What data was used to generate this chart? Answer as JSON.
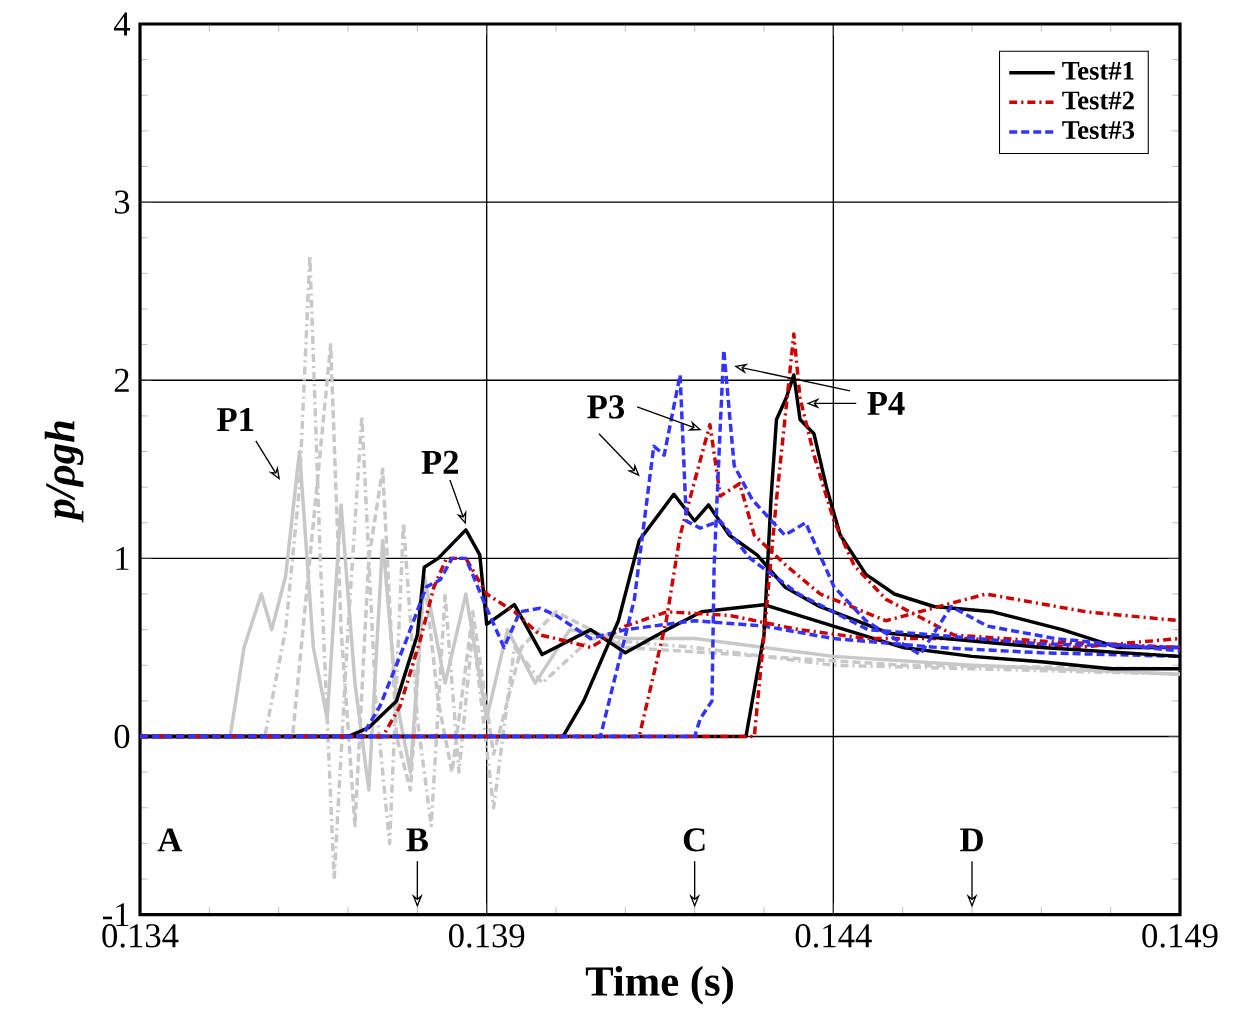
{
  "chart_data": {
    "type": "line",
    "xlabel": "Time (s)",
    "ylabel": "p/ρgh",
    "xlim": [
      0.134,
      0.149
    ],
    "ylim": [
      -1,
      4
    ],
    "xticks": [
      0.134,
      0.139,
      0.144,
      0.149
    ],
    "yticks": [
      -1,
      0,
      1,
      2,
      3,
      4
    ],
    "grid": true,
    "legend": "top right",
    "series": [
      {
        "name": "Test#1",
        "color": "#000000",
        "line_style": "solid",
        "x": [
          0.134,
          0.137,
          0.1373,
          0.1377,
          0.138,
          0.1381,
          0.1383,
          0.1387,
          0.1389,
          0.139,
          0.1394,
          0.1396,
          0.1398,
          0.1405,
          0.141,
          0.1416,
          0.1421,
          0.143,
          0.144,
          0.145,
          0.146,
          0.147,
          0.148,
          0.149
        ],
        "values": [
          0,
          0,
          0.05,
          0.2,
          0.57,
          0.95,
          1.0,
          1.16,
          1.02,
          0.63,
          0.74,
          0.6,
          0.46,
          0.6,
          0.47,
          0.6,
          0.7,
          0.74,
          0.62,
          0.5,
          0.45,
          0.42,
          0.38,
          0.38
        ]
      },
      {
        "name": "Test#2",
        "color": "#cc0000",
        "line_style": "dashdot",
        "x": [
          0.134,
          0.1375,
          0.13775,
          0.13804,
          0.13824,
          0.13842,
          0.1387,
          0.139,
          0.1394,
          0.13977,
          0.14,
          0.1405,
          0.141,
          0.1416,
          0.1425,
          0.1435,
          0.1445,
          0.146,
          0.1475,
          0.149
        ],
        "values": [
          0,
          0,
          0.17,
          0.54,
          0.84,
          1.0,
          1.0,
          0.8,
          0.7,
          0.57,
          0.55,
          0.5,
          0.62,
          0.7,
          0.68,
          0.6,
          0.55,
          0.55,
          0.5,
          0.55
        ]
      },
      {
        "name": "Test#3",
        "color": "#3333ff",
        "line_style": "dashed",
        "x": [
          0.134,
          0.1372,
          0.13746,
          0.13784,
          0.13813,
          0.13833,
          0.1385,
          0.1387,
          0.139,
          0.13925,
          0.13948,
          0.13977,
          0.14,
          0.1405,
          0.141,
          0.142,
          0.143,
          0.144,
          0.1455,
          0.147,
          0.149
        ],
        "values": [
          0,
          0,
          0.17,
          0.54,
          0.84,
          0.88,
          1.0,
          1.0,
          0.72,
          0.5,
          0.7,
          0.72,
          0.68,
          0.55,
          0.6,
          0.65,
          0.62,
          0.55,
          0.5,
          0.47,
          0.45
        ]
      },
      {
        "color": "#000000",
        "line_style": "solid",
        "x": [
          0.134,
          0.1401,
          0.1404,
          0.1409,
          0.1412,
          0.1417,
          0.142,
          0.1422,
          0.1425,
          0.1429,
          0.1433,
          0.1438,
          0.1448,
          0.147,
          0.149
        ],
        "values": [
          0,
          0,
          0.2,
          0.65,
          1.1,
          1.36,
          1.21,
          1.3,
          1.13,
          1.02,
          0.84,
          0.73,
          0.58,
          0.5,
          0.45
        ]
      },
      {
        "color": "#000000",
        "line_style": "solid",
        "x": [
          0.134,
          0.14274,
          0.143,
          0.1431,
          0.14318,
          0.14332,
          0.14343,
          0.14352,
          0.14372,
          0.1439,
          0.1441,
          0.14447,
          0.14488,
          0.14545,
          0.1463,
          0.1473,
          0.1481,
          0.149
        ],
        "values": [
          0,
          0,
          0.57,
          1.33,
          1.78,
          1.9,
          2.03,
          1.78,
          1.7,
          1.4,
          1.13,
          0.91,
          0.8,
          0.73,
          0.7,
          0.6,
          0.5,
          0.5
        ]
      },
      {
        "color": "#cc0000",
        "line_style": "dashdot",
        "x": [
          0.134,
          0.1412,
          0.14159,
          0.14179,
          0.14208,
          0.14222,
          0.14237,
          0.14265,
          0.14286,
          0.14332,
          0.14381,
          0.14476,
          0.1462,
          0.14765,
          0.149
        ],
        "values": [
          0,
          0,
          0.65,
          1.13,
          1.55,
          1.75,
          1.35,
          1.42,
          1.13,
          0.96,
          0.8,
          0.65,
          0.8,
          0.7,
          0.65
        ]
      },
      {
        "color": "#cc0000",
        "line_style": "dashdot",
        "x": [
          0.134,
          0.14286,
          0.143,
          0.14318,
          0.14332,
          0.14343,
          0.14352,
          0.14372,
          0.14401,
          0.1443,
          0.14476,
          0.14574,
          0.1472,
          0.149
        ],
        "values": [
          0,
          0,
          0.57,
          1.33,
          1.85,
          2.26,
          1.9,
          1.58,
          1.21,
          0.96,
          0.77,
          0.57,
          0.53,
          0.5
        ]
      },
      {
        "color": "#3333ff",
        "line_style": "dashed",
        "x": [
          0.134,
          0.14064,
          0.14113,
          0.14141,
          0.14156,
          0.14179,
          0.14188,
          0.14208,
          0.14237,
          0.1428,
          0.1435,
          0.1445,
          0.147,
          0.149
        ],
        "values": [
          0,
          0,
          0.77,
          1.63,
          1.58,
          2.03,
          1.21,
          1.17,
          1.21,
          1.0,
          0.8,
          0.6,
          0.52,
          0.5
        ]
      },
      {
        "color": "#3333ff",
        "line_style": "dashed",
        "x": [
          0.134,
          0.142,
          0.14208,
          0.14225,
          0.14228,
          0.14237,
          0.14242,
          0.14257,
          0.14283,
          0.1433,
          0.1436,
          0.14401,
          0.14447,
          0.14525,
          0.1457,
          0.14622,
          0.1472,
          0.149
        ],
        "values": [
          0,
          0,
          0.1,
          0.2,
          0.95,
          1.75,
          2.17,
          1.52,
          1.33,
          1.13,
          1.2,
          0.84,
          0.65,
          0.46,
          0.73,
          0.62,
          0.55,
          0.48
        ]
      },
      {
        "color": "#c8c8c8",
        "line_style": "solid",
        "x": [
          0.134,
          0.1353,
          0.1355,
          0.13575,
          0.1359,
          0.1361,
          0.1363,
          0.1365,
          0.1367,
          0.1369,
          0.1371,
          0.1373,
          0.1375,
          0.1377,
          0.1379,
          0.1381,
          0.1384,
          0.1387,
          0.139,
          0.1393,
          0.1397,
          0.1402,
          0.141,
          0.142,
          0.143,
          0.144,
          0.146,
          0.149
        ],
        "values": [
          0,
          0,
          0.5,
          0.8,
          0.6,
          0.9,
          1.6,
          0.5,
          0.1,
          1.3,
          0.3,
          -0.3,
          1.1,
          0.2,
          -0.2,
          0.9,
          0.3,
          0.8,
          0.1,
          0.6,
          0.3,
          0.6,
          0.55,
          0.55,
          0.5,
          0.45,
          0.4,
          0.35
        ]
      },
      {
        "color": "#c8c8c8",
        "line_style": "dashdot",
        "x": [
          0.134,
          0.1358,
          0.1361,
          0.1363,
          0.13645,
          0.1366,
          0.1368,
          0.137,
          0.1372,
          0.1374,
          0.1376,
          0.1378,
          0.138,
          0.1382,
          0.1384,
          0.1386,
          0.1388,
          0.1391,
          0.1394,
          0.1398,
          0.1405,
          0.142,
          0.144,
          0.146,
          0.149
        ],
        "values": [
          0,
          0,
          0.6,
          1.4,
          2.7,
          1.0,
          -0.8,
          0.6,
          1.8,
          0.2,
          -0.6,
          1.2,
          0.1,
          -0.5,
          0.8,
          -0.2,
          0.6,
          -0.4,
          0.5,
          0.3,
          0.55,
          0.5,
          0.4,
          0.38,
          0.35
        ]
      },
      {
        "color": "#c8c8c8",
        "line_style": "dashed",
        "x": [
          0.134,
          0.1362,
          0.1364,
          0.13665,
          0.13675,
          0.1369,
          0.1371,
          0.1373,
          0.1375,
          0.1377,
          0.1379,
          0.1381,
          0.1383,
          0.1385,
          0.1388,
          0.1391,
          0.1395,
          0.14,
          0.141,
          0.143,
          0.145,
          0.149
        ],
        "values": [
          0,
          0,
          0.8,
          1.8,
          2.2,
          0.6,
          -0.5,
          1.0,
          1.5,
          0.0,
          -0.3,
          0.9,
          0.2,
          -0.2,
          0.7,
          -0.1,
          0.5,
          0.7,
          0.5,
          0.45,
          0.4,
          0.38
        ]
      }
    ],
    "annotations": [
      "P1",
      "P2",
      "P3",
      "P4",
      "A",
      "B",
      "C",
      "D"
    ]
  }
}
